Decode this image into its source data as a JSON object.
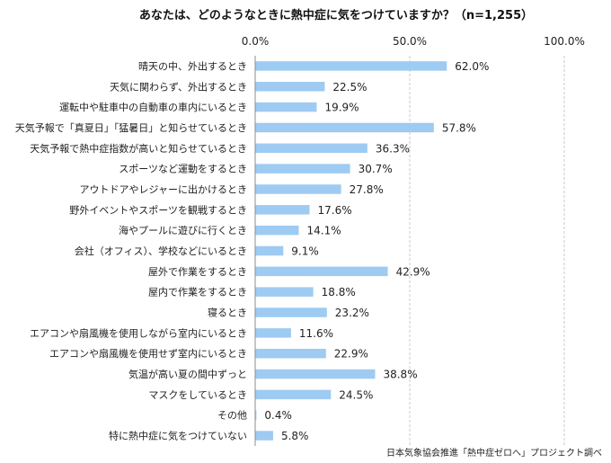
{
  "chart_data": {
    "type": "bar",
    "orientation": "horizontal",
    "title": "あなたは、どのようなときに熱中症に気をつけていますか？（n=1,255）",
    "xlim": [
      0,
      100
    ],
    "x_ticks": [
      "0.0%",
      "50.0%",
      "100.0%"
    ],
    "grid": true,
    "categories": [
      "晴天の中、外出するとき",
      "天気に関わらず、外出するとき",
      "運転中や駐車中の自動車の車内にいるとき",
      "天気予報で「真夏日」「猛暑日」と知らせているとき",
      "天気予報で熱中症指数が高いと知らせているとき",
      "スポーツなど運動をするとき",
      "アウトドアやレジャーに出かけるとき",
      "野外イベントやスポーツを観戦するとき",
      "海やプールに遊びに行くとき",
      "会社（オフィス）、学校などにいるとき",
      "屋外で作業をするとき",
      "屋内で作業をするとき",
      "寝るとき",
      "エアコンや扇風機を使用しながら室内にいるとき",
      "エアコンや扇風機を使用せず室内にいるとき",
      "気温が高い夏の間中ずっと",
      "マスクをしているとき",
      "その他",
      "特に熱中症に気をつけていない"
    ],
    "values": [
      62.0,
      22.5,
      19.9,
      57.8,
      36.3,
      30.7,
      27.8,
      17.6,
      14.1,
      9.1,
      42.9,
      18.8,
      23.2,
      11.6,
      22.9,
      38.8,
      24.5,
      0.4,
      5.8
    ],
    "value_labels": [
      "62.0%",
      "22.5%",
      "19.9%",
      "57.8%",
      "36.3%",
      "30.7%",
      "27.8%",
      "17.6%",
      "14.1%",
      "9.1%",
      "42.9%",
      "18.8%",
      "23.2%",
      "11.6%",
      "22.9%",
      "38.8%",
      "24.5%",
      "0.4%",
      "5.8%"
    ],
    "bar_color": "#9ecbf2",
    "source": "日本気象協会推進「熱中症ゼロへ」プロジェクト調べ"
  }
}
